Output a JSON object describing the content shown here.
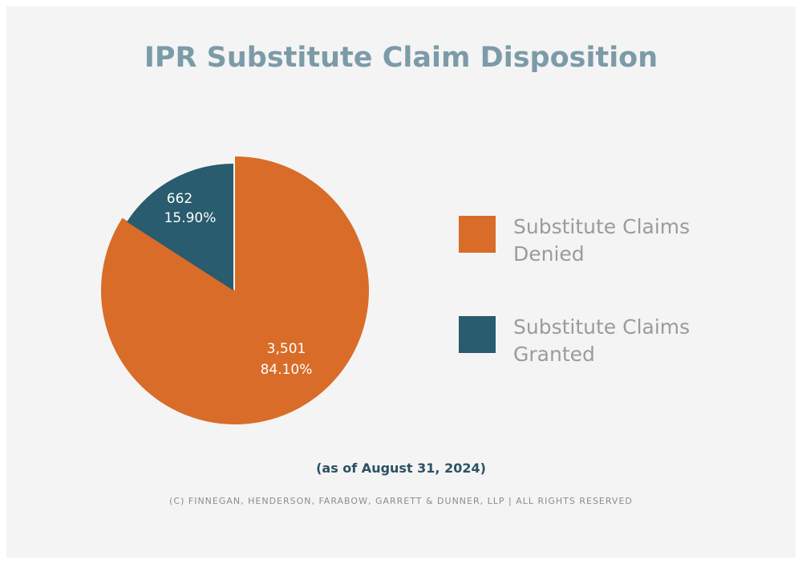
{
  "chart_data": {
    "type": "pie",
    "title": "IPR Substitute Claim Disposition",
    "slices": [
      {
        "name": "Substitute Claims Denied",
        "value": 3501,
        "value_label": "3,501",
        "percent_label": "84.10%",
        "color": "#d96c28"
      },
      {
        "name": "Substitute Claims Granted",
        "value": 662,
        "value_label": "662",
        "percent_label": "15.90%",
        "color": "#285c6e",
        "exploded": true
      }
    ],
    "legend_placement": "right",
    "subtitle": "(as of August 31, 2024)",
    "footer": "(C) FINNEGAN, HENDERSON, FARABOW, GARRETT & DUNNER, LLP | ALL RIGHTS RESERVED"
  }
}
